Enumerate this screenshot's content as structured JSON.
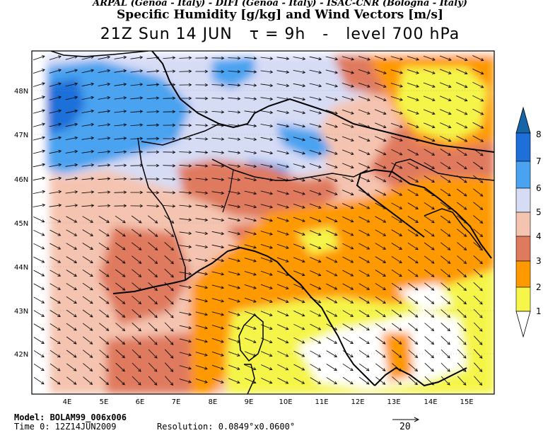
{
  "header": {
    "sources": "ARPAL (Genoa - Italy)  -  DIFI (Genoa - Italy)  -  ISAC-CNR (Bologna - Italy)",
    "title": "Specific Humidity [g/kg] and Wind Vectors [m/s]",
    "valid_time": "21Z Sun 14 JUN",
    "tau_label": "τ = 9h",
    "separator": "-",
    "level": "level 700 hPa"
  },
  "map": {
    "lat_labels": [
      "48N",
      "47N",
      "46N",
      "45N",
      "44N",
      "43N",
      "42N"
    ],
    "lon_labels": [
      "4E",
      "5E",
      "6E",
      "7E",
      "8E",
      "9E",
      "10E",
      "11E",
      "12E",
      "13E",
      "14E",
      "15E"
    ],
    "lat_range": [
      41.2,
      48.9
    ],
    "lon_range": [
      3.1,
      16.0
    ]
  },
  "colorbar": {
    "levels": [
      "1",
      "2",
      "3",
      "4",
      "5",
      "6",
      "7",
      "8"
    ],
    "colors": [
      "#ffffff",
      "#f5f54a",
      "#ff9900",
      "#e07a5f",
      "#f5c4b0",
      "#d7dcf5",
      "#4aa3f0",
      "#1e6fd9",
      "#1565a8"
    ]
  },
  "footer": {
    "model": "Model: BOLAM99_006x006",
    "time0": "Time 0: 12Z14JUN2009",
    "resolution": "Resolution: 0.0849°x0.0600°",
    "ref_vector": "20"
  }
}
